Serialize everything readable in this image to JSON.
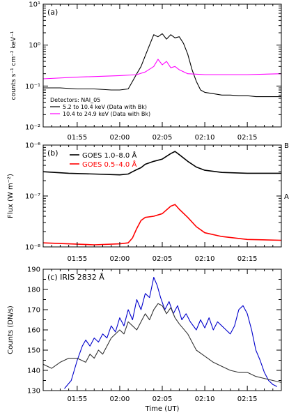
{
  "chart_data": [
    {
      "type": "line",
      "panel_label": "(a)",
      "ylabel": "counts s⁻¹ cm⁻² keV⁻¹",
      "yscale": "log",
      "ylim": [
        0.01,
        10
      ],
      "xlim": [
        111,
        139
      ],
      "x_unit": "minutes after 00:00 UT",
      "y_ticks": [
        {
          "value": 0.01,
          "label": "10⁻²"
        },
        {
          "value": 0.1,
          "label": "10⁻¹"
        },
        {
          "value": 1,
          "label": "10⁰"
        },
        {
          "value": 10,
          "label": "10¹"
        }
      ],
      "x_ticks": [
        {
          "value": 115,
          "label": "01:55"
        },
        {
          "value": 120,
          "label": "02:00"
        },
        {
          "value": 125,
          "label": "02:05"
        },
        {
          "value": 130,
          "label": "02:10"
        },
        {
          "value": 135,
          "label": "02:15"
        }
      ],
      "legend_title": "Detectors: NAI_05",
      "legend_placement": "bottom-left",
      "series": [
        {
          "name": "5.2 to 10.4 keV (Data with Bk)",
          "color": "#000000",
          "x": [
            111,
            113,
            115,
            117,
            119,
            120,
            121,
            121.5,
            122,
            122.5,
            123,
            123.5,
            124,
            124.5,
            125,
            125.5,
            126,
            126.5,
            127,
            127.5,
            128,
            128.5,
            129,
            129.5,
            130,
            131,
            132,
            133,
            134,
            135,
            136,
            137,
            138,
            139
          ],
          "values": [
            0.09,
            0.09,
            0.085,
            0.085,
            0.08,
            0.08,
            0.085,
            0.13,
            0.2,
            0.3,
            0.55,
            1.0,
            1.8,
            1.6,
            1.9,
            1.4,
            1.8,
            1.5,
            1.6,
            1.1,
            0.6,
            0.25,
            0.13,
            0.08,
            0.07,
            0.065,
            0.06,
            0.06,
            0.058,
            0.058,
            0.055,
            0.055,
            0.055,
            0.055
          ]
        },
        {
          "name": "10.4 to 24.9 keV (Data with Bk)",
          "color": "#ff00ff",
          "x": [
            111,
            115,
            120,
            122,
            123,
            124,
            124.5,
            125,
            125.5,
            126,
            126.5,
            127,
            128,
            130,
            135,
            139
          ],
          "values": [
            0.15,
            0.165,
            0.18,
            0.19,
            0.22,
            0.3,
            0.45,
            0.33,
            0.4,
            0.28,
            0.3,
            0.25,
            0.2,
            0.19,
            0.19,
            0.2
          ]
        }
      ]
    },
    {
      "type": "line",
      "panel_label": "(b)",
      "ylabel": "Flux  (W m⁻²)",
      "yscale": "log",
      "ylim": [
        1e-08,
        1e-06
      ],
      "xlim": [
        111,
        139
      ],
      "x_unit": "minutes after 00:00 UT",
      "y_ticks": [
        {
          "value": 1e-08,
          "label": "10⁻⁸"
        },
        {
          "value": 1e-07,
          "label": "10⁻⁷"
        },
        {
          "value": 1e-06,
          "label": "10⁻⁶"
        }
      ],
      "x_ticks": [
        {
          "value": 115,
          "label": "01:55"
        },
        {
          "value": 120,
          "label": "02:00"
        },
        {
          "value": 125,
          "label": "02:05"
        },
        {
          "value": 130,
          "label": "02:10"
        },
        {
          "value": 135,
          "label": "02:15"
        }
      ],
      "right_labels": [
        {
          "value": 1e-06,
          "label": "B"
        },
        {
          "value": 1e-07,
          "label": "A"
        }
      ],
      "legend_placement": "top-left",
      "series": [
        {
          "name": "GOES 1.0–8.0 Å",
          "color": "#000000",
          "x": [
            111,
            114,
            117,
            120,
            121,
            121.5,
            122,
            122.5,
            123,
            124,
            125,
            126,
            126.5,
            127,
            128,
            129,
            130,
            132,
            135,
            139
          ],
          "values": [
            3e-07,
            2.8e-07,
            2.7e-07,
            2.6e-07,
            2.7e-07,
            3e-07,
            3.3e-07,
            3.6e-07,
            4.2e-07,
            4.8e-07,
            5.3e-07,
            6.8e-07,
            7.5e-07,
            6.5e-07,
            4.8e-07,
            3.7e-07,
            3.2e-07,
            2.9e-07,
            2.8e-07,
            2.8e-07
          ]
        },
        {
          "name": "GOES 0.5–4.0 Å",
          "color": "#ff0000",
          "x": [
            111,
            114,
            117,
            120,
            121,
            121.5,
            122,
            122.5,
            123,
            124,
            125,
            126,
            126.5,
            127,
            128,
            129,
            130,
            132,
            135,
            139
          ],
          "values": [
            1.2e-08,
            1.15e-08,
            1.1e-08,
            1.15e-08,
            1.2e-08,
            1.5e-08,
            2.3e-08,
            3.3e-08,
            3.8e-08,
            4e-08,
            4.5e-08,
            6.3e-08,
            6.8e-08,
            5.5e-08,
            3.8e-08,
            2.5e-08,
            1.9e-08,
            1.6e-08,
            1.4e-08,
            1.35e-08
          ]
        }
      ]
    },
    {
      "type": "line",
      "panel_label": "(c) IRIS 2832 Å",
      "ylabel": "Counts (DN/s)",
      "xlabel": "Time (UT)",
      "yscale": "linear",
      "ylim": [
        130,
        190
      ],
      "xlim": [
        111,
        139
      ],
      "x_unit": "minutes after 00:00 UT",
      "y_ticks": [
        {
          "value": 130,
          "label": "130"
        },
        {
          "value": 140,
          "label": "140"
        },
        {
          "value": 150,
          "label": "150"
        },
        {
          "value": 160,
          "label": "160"
        },
        {
          "value": 170,
          "label": "170"
        },
        {
          "value": 180,
          "label": "180"
        },
        {
          "value": 190,
          "label": "190"
        }
      ],
      "x_ticks": [
        {
          "value": 115,
          "label": "01:55"
        },
        {
          "value": 120,
          "label": "02:00"
        },
        {
          "value": 125,
          "label": "02:05"
        },
        {
          "value": 130,
          "label": "02:10"
        },
        {
          "value": 135,
          "label": "02:15"
        }
      ],
      "series": [
        {
          "color": "#0000cc",
          "x": [
            113.5,
            114.3,
            115,
            115.6,
            116,
            116.5,
            117,
            117.5,
            118,
            118.5,
            119,
            119.5,
            120,
            120.5,
            121,
            121.5,
            122,
            122.5,
            123,
            123.5,
            124,
            124.4,
            124.8,
            125.3,
            125.8,
            126.3,
            126.8,
            127.3,
            127.8,
            128.3,
            129,
            129.5,
            130,
            130.5,
            131,
            131.5,
            132,
            132.5,
            133,
            133.5,
            134,
            134.5,
            135,
            135.5,
            136,
            136.5,
            137,
            137.5,
            138,
            138.5
          ],
          "values": [
            131,
            135,
            145,
            152,
            155,
            152,
            156,
            154,
            158,
            156,
            162,
            159,
            166,
            162,
            170,
            165,
            175,
            170,
            178,
            176,
            186,
            182,
            176,
            170,
            174,
            168,
            172,
            165,
            168,
            164,
            160,
            165,
            161,
            166,
            160,
            164,
            162,
            160,
            158,
            162,
            170,
            172,
            168,
            160,
            150,
            145,
            139,
            135,
            133,
            132
          ]
        },
        {
          "color": "#333333",
          "x": [
            111,
            112,
            113,
            114,
            115,
            116,
            116.5,
            117,
            117.5,
            118,
            119,
            120,
            120.5,
            121,
            121.5,
            122,
            122.5,
            123,
            123.5,
            124,
            124.5,
            125,
            125.5,
            126,
            126.5,
            127,
            128,
            129,
            130,
            131,
            132,
            133,
            134,
            135,
            136,
            137,
            138,
            139
          ],
          "values": [
            143,
            141,
            144,
            146,
            146,
            144,
            148,
            146,
            150,
            148,
            156,
            160,
            158,
            164,
            162,
            160,
            164,
            168,
            165,
            170,
            173,
            172,
            168,
            171,
            166,
            163,
            158,
            150,
            147,
            144,
            142,
            140,
            139,
            139,
            137,
            136,
            135,
            134
          ]
        }
      ]
    }
  ]
}
